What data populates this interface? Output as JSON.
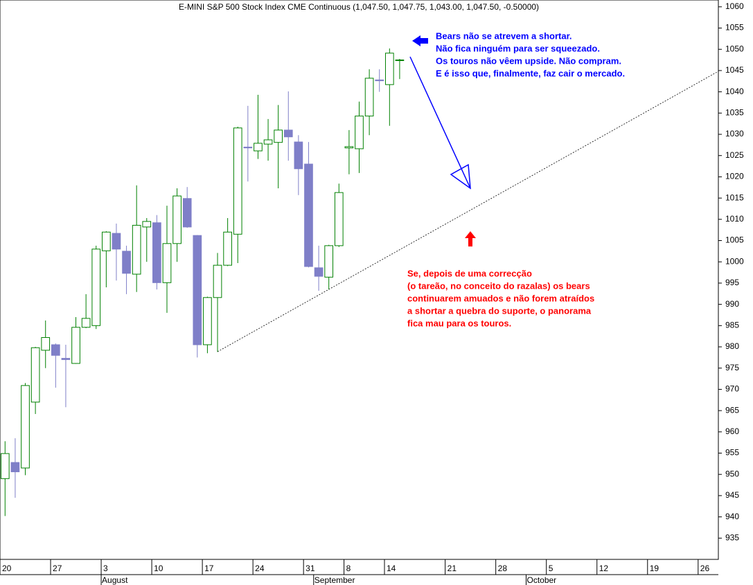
{
  "chart_data": {
    "type": "candlestick",
    "title": "E-MINI S&P 500 Stock Index CME Continuous (1,047.50, 1,047.75, 1,043.00, 1,047.50, -0.50000)",
    "categories": [
      "20",
      null,
      null,
      null,
      null,
      "27",
      null,
      null,
      null,
      null,
      "3",
      null,
      null,
      null,
      null,
      "10",
      null,
      null,
      null,
      null,
      "17",
      null,
      null,
      null,
      null,
      "24",
      null,
      null,
      null,
      null,
      "31",
      null,
      null,
      null,
      "8",
      null,
      null,
      null,
      "14",
      null,
      null,
      null,
      null,
      null,
      "21",
      null,
      null,
      null,
      null,
      "28",
      null,
      null,
      null,
      null,
      "5",
      null,
      null,
      null,
      null,
      "12",
      null,
      null,
      null,
      null,
      "19",
      null,
      null,
      null,
      null,
      "26",
      null
    ],
    "months": [
      null,
      null,
      null,
      null,
      null,
      null,
      null,
      null,
      null,
      null,
      "August",
      null,
      null,
      null,
      null,
      null,
      null,
      null,
      null,
      null,
      null,
      null,
      null,
      null,
      null,
      null,
      null,
      null,
      null,
      null,
      null,
      "September",
      null,
      null,
      null,
      null,
      null,
      null,
      null,
      null,
      null,
      null,
      null,
      null,
      null,
      null,
      null,
      null,
      null,
      null,
      null,
      null,
      "October",
      null,
      null,
      null,
      null,
      null,
      null,
      null,
      null,
      null,
      null,
      null,
      null,
      null,
      null,
      null,
      null,
      null,
      null
    ],
    "open": [
      949,
      952.8,
      951.5,
      967,
      979.2,
      980.5,
      977.3,
      976.1,
      984.6,
      985,
      1002.6,
      1006.7,
      1002.5,
      997.1,
      1008.2,
      1009.2,
      995.1,
      1004.3,
      1014.9,
      1006.2,
      980.5,
      991.6,
      999.2,
      1006.5,
      1027,
      1026.1,
      1027.7,
      1028.1,
      1031,
      1028.2,
      1023,
      998.6,
      996.4,
      1003.8,
      1026.8,
      1026.6,
      1034.3,
      1042.8,
      1041.7,
      1047.5,
      null,
      null,
      null,
      null,
      null,
      null,
      null,
      null,
      null,
      null,
      null,
      null,
      null,
      null,
      null,
      null,
      null,
      null,
      null,
      null,
      null,
      null,
      null,
      null,
      null,
      null,
      null,
      null,
      null,
      null,
      null
    ],
    "high": [
      957.8,
      958.5,
      971.5,
      980,
      986.2,
      980.8,
      980.5,
      987,
      992.4,
      1003.8,
      1007.2,
      1009,
      1003.8,
      1018,
      1010.3,
      1011,
      1013.2,
      1017.3,
      1017.6,
      1006.3,
      991.8,
      1002.1,
      1010.3,
      1031.8,
      1036.7,
      1039.3,
      1033.6,
      1036.9,
      1040.1,
      1029.8,
      1028.2,
      1003.8,
      1004,
      1018.4,
      1031,
      1037.7,
      1045.3,
      1045.3,
      1050.2,
      1047.75,
      null,
      null,
      null,
      null,
      null,
      null,
      null,
      null,
      null,
      null,
      null,
      null,
      null,
      null,
      null,
      null,
      null,
      null,
      null,
      null,
      null,
      null,
      null,
      null,
      null,
      null,
      null,
      null,
      null,
      null,
      null
    ],
    "low": [
      940.2,
      944.5,
      949.8,
      964.2,
      975,
      970.4,
      965.8,
      976,
      984.4,
      984.2,
      994,
      995.6,
      992.4,
      992.9,
      1000,
      993.5,
      988,
      1000,
      1008,
      977.5,
      978.5,
      978.8,
      999,
      999.7,
      1018.9,
      1024.2,
      1023.8,
      1017.3,
      1023.8,
      1015.7,
      998.7,
      993.2,
      993.5,
      1003.5,
      1020.6,
      1020.9,
      1029.8,
      1040,
      1032,
      1043,
      null,
      null,
      null,
      null,
      null,
      null,
      null,
      null,
      null,
      null,
      null,
      null,
      null,
      null,
      null,
      null,
      null,
      null,
      null,
      null,
      null,
      null,
      null,
      null,
      null,
      null,
      null,
      null,
      null,
      null,
      null
    ],
    "close": [
      954.9,
      950.6,
      970.9,
      979.8,
      982.2,
      978,
      977,
      984.6,
      986.7,
      1003,
      1007,
      1003,
      997.3,
      1008.6,
      1009.5,
      995.1,
      1004.3,
      1015.5,
      1008.2,
      980.5,
      991.6,
      999.2,
      1007,
      1031.5,
      1026.8,
      1027.9,
      1028.7,
      1031,
      1029.4,
      1021.9,
      998.9,
      996.6,
      1003.8,
      1016.3,
      1027.1,
      1034.3,
      1043.2,
      1042.6,
      1049.1,
      1047.5,
      null,
      null,
      null,
      null,
      null,
      null,
      null,
      null,
      null,
      null,
      null,
      null,
      null,
      null,
      null,
      null,
      null,
      null,
      null,
      null,
      null,
      null,
      null,
      null,
      null,
      null,
      null,
      null,
      null,
      null,
      null
    ],
    "up_color": "#008000",
    "down_color": "#7f7fc8",
    "ylim": [
      930,
      1061.6
    ],
    "yticks": [
      935,
      940,
      945,
      950,
      955,
      960,
      965,
      970,
      975,
      980,
      985,
      990,
      995,
      1000,
      1005,
      1010,
      1015,
      1020,
      1025,
      1030,
      1035,
      1040,
      1045,
      1050,
      1055,
      1060
    ],
    "annotations": [
      {
        "color": "#0000ff",
        "lines": [
          "Bears não se atrevem a shortar.",
          "Não fica ninguém para ser squeezado.",
          "Os touros não vêem upside. Não compram.",
          "E é isso que, finalmente, faz cair o mercado."
        ]
      },
      {
        "color": "#ff0000",
        "lines": [
          "Se, depois de uma correcção",
          "(o tareão, no conceito do razalas) os bears",
          "continuarem amuados e não forem atraídos",
          "a shortar a quebra do suporte, o panorama",
          "fica mau para os touros."
        ]
      }
    ]
  }
}
